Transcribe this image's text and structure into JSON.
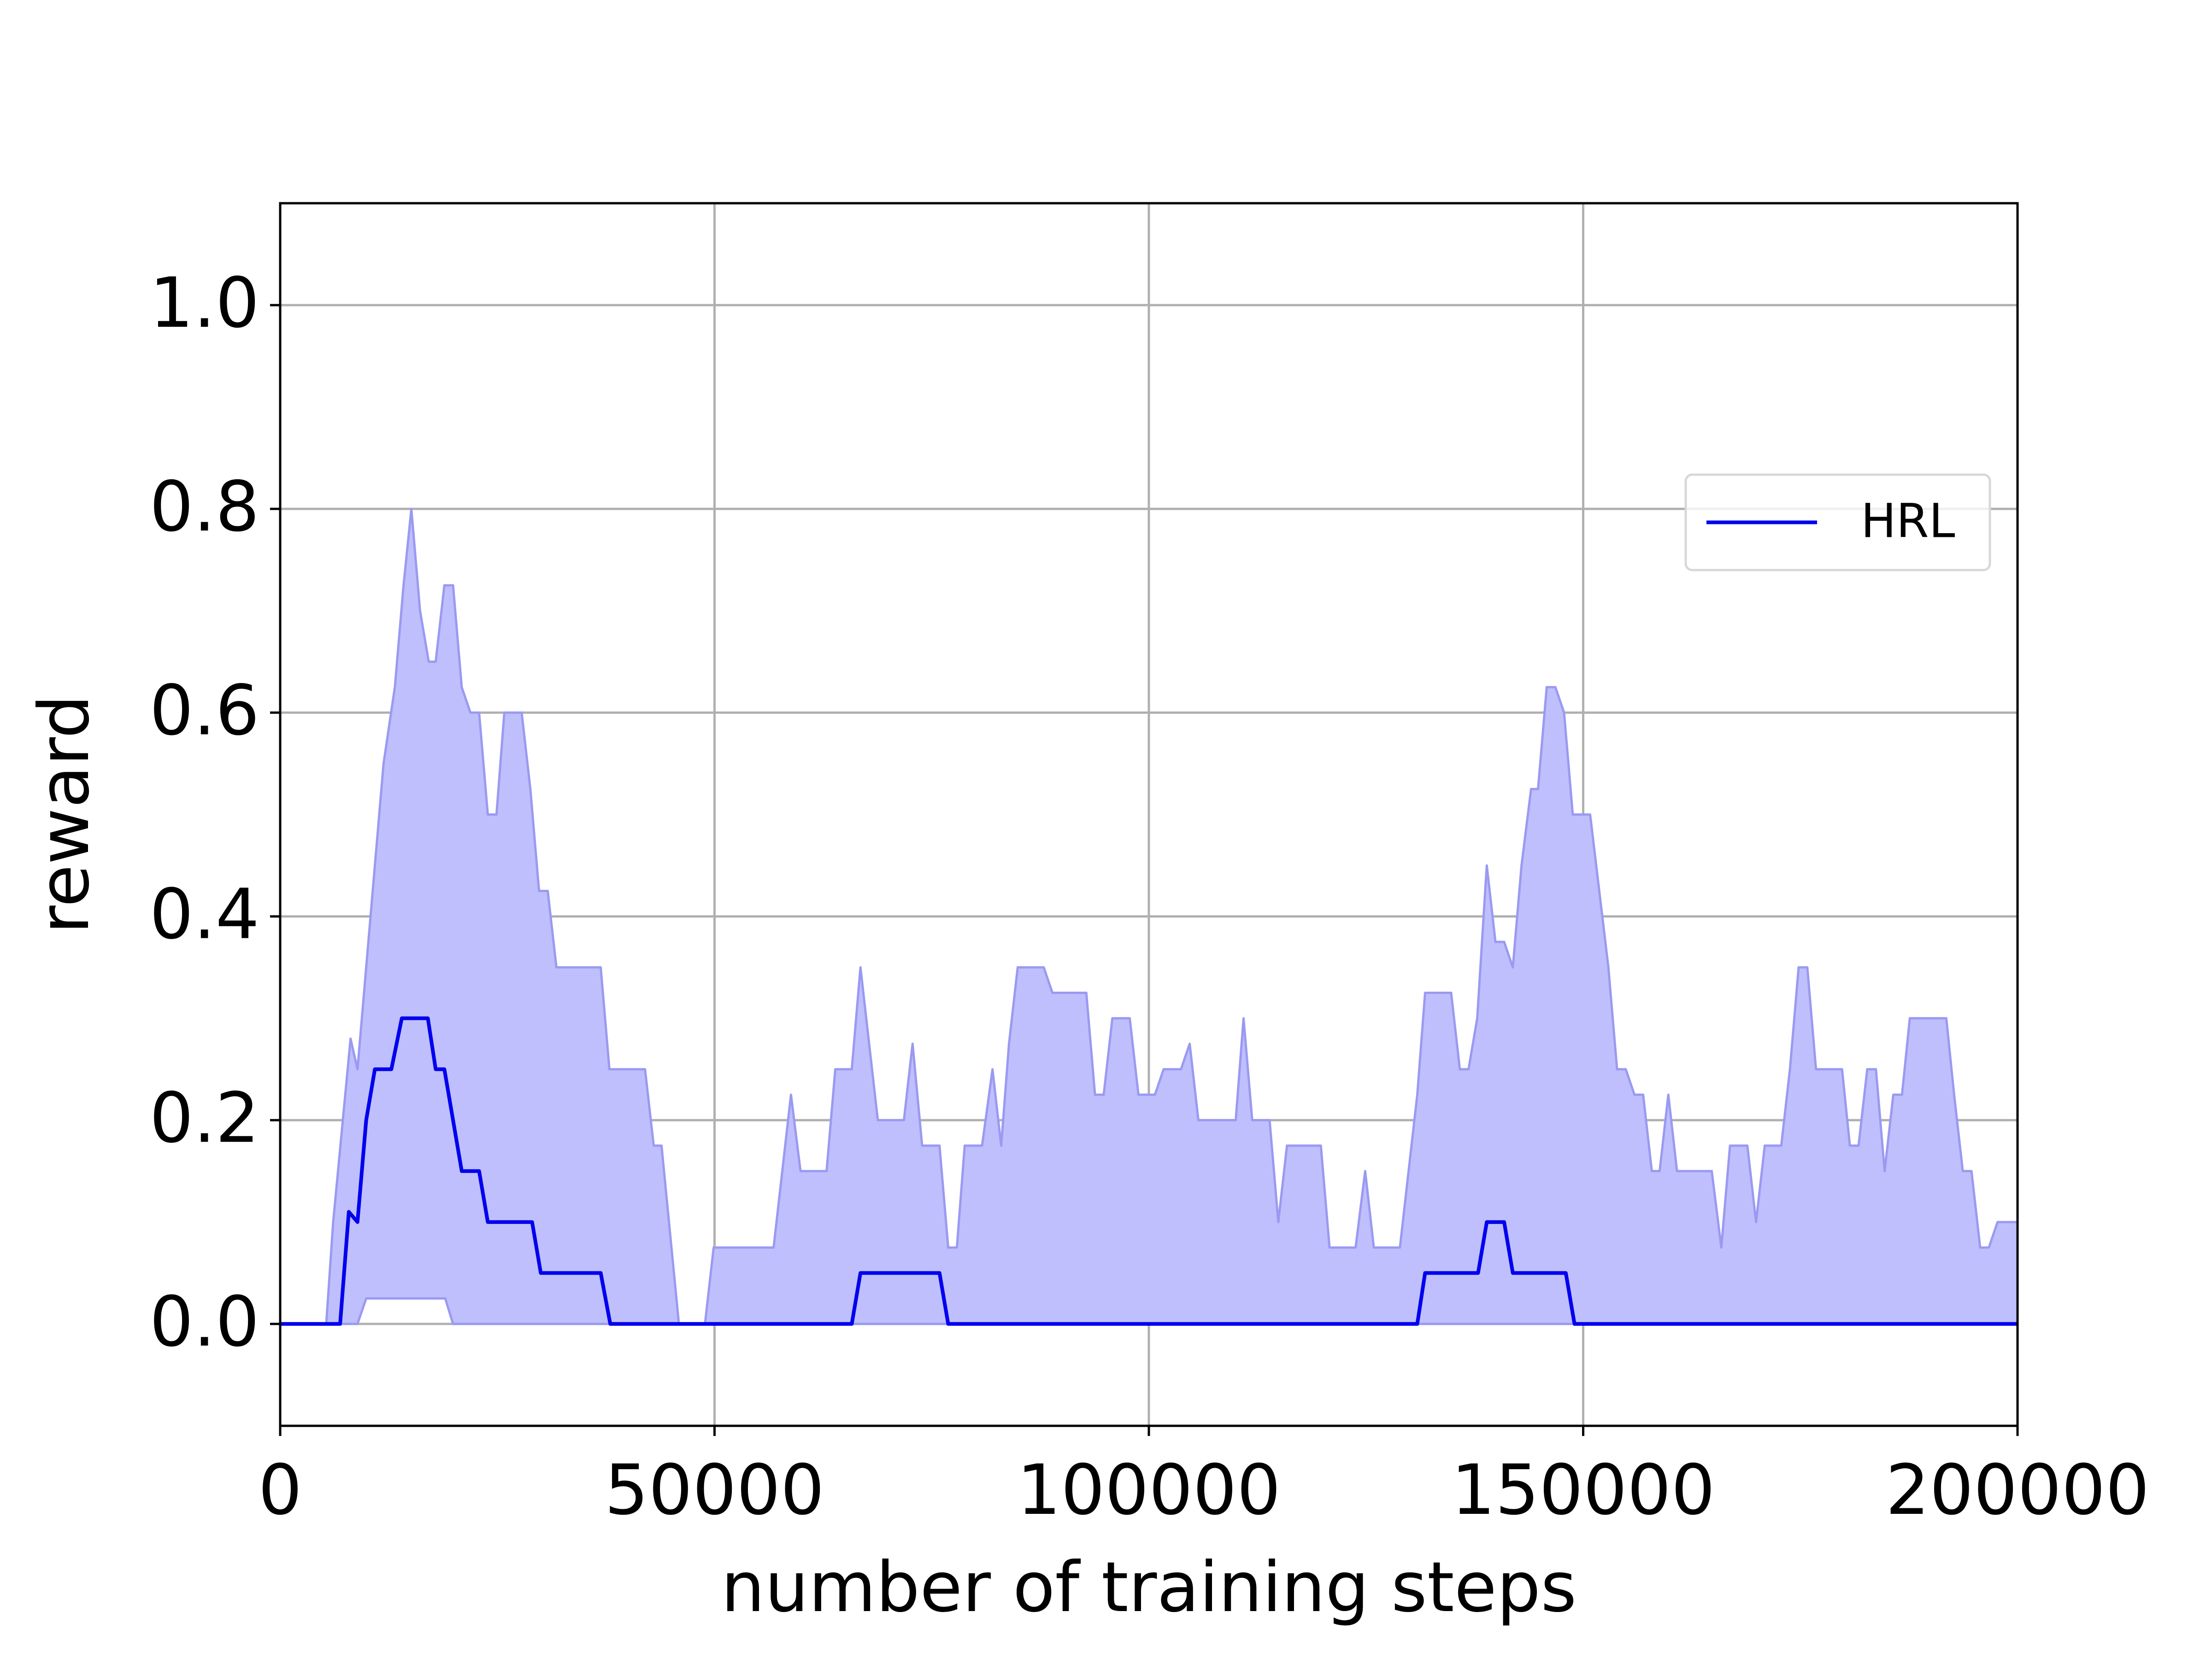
{
  "chart_data": {
    "type": "line",
    "xlabel": "number of training steps",
    "ylabel": "reward",
    "xlim": [
      0,
      200000
    ],
    "ylim": [
      -0.1,
      1.1
    ],
    "xticks": [
      0,
      50000,
      100000,
      150000,
      200000
    ],
    "yticks": [
      {
        "value": 0,
        "label": "0.0"
      },
      0.2,
      0.4,
      0.6,
      0.8,
      {
        "value": 1,
        "label": "1.0"
      }
    ],
    "grid": true,
    "legend": "upper right",
    "series": [
      {
        "name": "HRL",
        "color": "#0000ee",
        "x": [
          0,
          6900,
          7900,
          8900,
          9900,
          10900,
          12800,
          14000,
          17000,
          17900,
          18900,
          20900,
          22900,
          23900,
          29000,
          30000,
          36900,
          38000,
          65800,
          66800,
          75900,
          76900,
          130900,
          131800,
          137900,
          138900,
          140900,
          141900,
          148000,
          149000,
          200000
        ],
        "values": [
          0,
          0,
          0.11,
          0.1,
          0.2,
          0.25,
          0.25,
          0.3,
          0.3,
          0.25,
          0.25,
          0.15,
          0.15,
          0.1,
          0.1,
          0.05,
          0.05,
          0,
          0,
          0.05,
          0.05,
          0,
          0,
          0.05,
          0.05,
          0.1,
          0.1,
          0.05,
          0.05,
          0,
          0
        ]
      }
    ],
    "band": {
      "color": "#bfbffd",
      "edge": "#9a9af2",
      "upper": {
        "x": [
          0,
          5300,
          6100,
          8100,
          8900,
          11900,
          13200,
          14200,
          15100,
          16100,
          17100,
          17900,
          18900,
          19900,
          20900,
          21900,
          22900,
          23900,
          24900,
          25800,
          27800,
          28800,
          29800,
          30800,
          31800,
          36900,
          37900,
          42000,
          43000,
          43900,
          45900,
          48900,
          49900,
          56800,
          58800,
          59900,
          62900,
          63900,
          65800,
          66800,
          68800,
          71800,
          72800,
          73900,
          75900,
          76900,
          77900,
          78800,
          80800,
          82000,
          83000,
          83900,
          84900,
          87900,
          88900,
          92800,
          93800,
          94800,
          95800,
          97800,
          98800,
          100700,
          101700,
          103700,
          104700,
          105700,
          110000,
          110900,
          111900,
          113900,
          114900,
          115900,
          119800,
          120800,
          123800,
          124900,
          125900,
          128900,
          130900,
          131800,
          134800,
          135800,
          136800,
          137800,
          138900,
          139900,
          140900,
          141900,
          142900,
          144000,
          144800,
          145800,
          146800,
          147800,
          148800,
          150800,
          152900,
          153900,
          154900,
          155900,
          156900,
          157900,
          158800,
          159800,
          160800,
          164800,
          165900,
          166900,
          168900,
          169900,
          170900,
          172800,
          173800,
          174800,
          175800,
          176800,
          179800,
          180700,
          181700,
          182700,
          183700,
          184700,
          185700,
          186700,
          187600,
          191800,
          192700,
          193700,
          194700,
          195700,
          196700,
          197700,
          200000
        ],
        "values": [
          0,
          0,
          0.1,
          0.28,
          0.25,
          0.55,
          0.625,
          0.725,
          0.8,
          0.7,
          0.65,
          0.65,
          0.725,
          0.725,
          0.625,
          0.6,
          0.6,
          0.5,
          0.5,
          0.6,
          0.6,
          0.525,
          0.425,
          0.425,
          0.35,
          0.35,
          0.25,
          0.25,
          0.175,
          0.175,
          0,
          0,
          0.075,
          0.075,
          0.225,
          0.15,
          0.15,
          0.25,
          0.25,
          0.35,
          0.2,
          0.2,
          0.275,
          0.175,
          0.175,
          0.075,
          0.075,
          0.175,
          0.175,
          0.25,
          0.175,
          0.275,
          0.35,
          0.35,
          0.325,
          0.325,
          0.225,
          0.225,
          0.3,
          0.3,
          0.225,
          0.225,
          0.25,
          0.25,
          0.275,
          0.2,
          0.2,
          0.3,
          0.2,
          0.2,
          0.1,
          0.175,
          0.175,
          0.075,
          0.075,
          0.15,
          0.075,
          0.075,
          0.225,
          0.325,
          0.325,
          0.25,
          0.25,
          0.3,
          0.45,
          0.375,
          0.375,
          0.35,
          0.45,
          0.525,
          0.525,
          0.625,
          0.625,
          0.6,
          0.5,
          0.5,
          0.35,
          0.25,
          0.25,
          0.225,
          0.225,
          0.15,
          0.15,
          0.225,
          0.15,
          0.15,
          0.075,
          0.175,
          0.175,
          0.1,
          0.175,
          0.175,
          0.25,
          0.35,
          0.35,
          0.25,
          0.25,
          0.175,
          0.175,
          0.25,
          0.25,
          0.15,
          0.225,
          0.225,
          0.3,
          0.3,
          0.225,
          0.15,
          0.15,
          0.075,
          0.075,
          0.1,
          0.1
        ]
      },
      "lower": {
        "x": [
          0,
          8900,
          9900,
          19000,
          19900,
          200000
        ],
        "values": [
          0,
          0,
          0.025,
          0.025,
          0,
          0
        ]
      }
    }
  }
}
